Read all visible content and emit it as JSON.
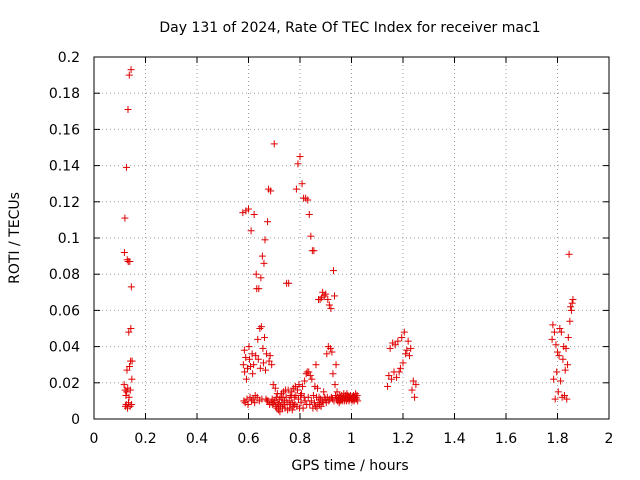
{
  "chart_data": {
    "type": "scatter",
    "title": "Day 131 of 2024, Rate Of TEC Index for receiver mac1",
    "xlabel": "GPS time / hours",
    "ylabel": "ROTI / TECUs",
    "xlim": [
      0,
      2
    ],
    "ylim": [
      0,
      0.2
    ],
    "grid": true,
    "marker": "+",
    "color": "#e00000",
    "xticks": [
      0,
      0.2,
      0.4,
      0.6,
      0.8,
      1,
      1.2,
      1.4,
      1.6,
      1.8,
      2
    ],
    "xtick_labels": [
      "0",
      "0.2",
      "0.4",
      "0.6",
      "0.8",
      "1",
      "1.2",
      "1.4",
      "1.6",
      "1.8",
      "2"
    ],
    "yticks": [
      0,
      0.02,
      0.04,
      0.06,
      0.08,
      0.1,
      0.12,
      0.14,
      0.16,
      0.18,
      0.2
    ],
    "ytick_labels": [
      "0",
      "0.02",
      "0.04",
      "0.06",
      "0.08",
      "0.1",
      "0.12",
      "0.14",
      "0.16",
      "0.18",
      "0.2"
    ],
    "series": [
      {
        "name": "ROTI",
        "points": [
          [
            0.117,
            0.019
          ],
          [
            0.118,
            0.092
          ],
          [
            0.12,
            0.111
          ],
          [
            0.121,
            0.016
          ],
          [
            0.122,
            0.007
          ],
          [
            0.124,
            0.013
          ],
          [
            0.125,
            0.008
          ],
          [
            0.126,
            0.139
          ],
          [
            0.127,
            0.015
          ],
          [
            0.128,
            0.027
          ],
          [
            0.129,
            0.088
          ],
          [
            0.13,
            0.006
          ],
          [
            0.131,
            0.017
          ],
          [
            0.132,
            0.171
          ],
          [
            0.133,
            0.087
          ],
          [
            0.134,
            0.009
          ],
          [
            0.135,
            0.048
          ],
          [
            0.136,
            0.012
          ],
          [
            0.137,
            0.19
          ],
          [
            0.138,
            0.029
          ],
          [
            0.139,
            0.087
          ],
          [
            0.14,
            0.007
          ],
          [
            0.141,
            0.016
          ],
          [
            0.142,
            0.032
          ],
          [
            0.143,
            0.05
          ],
          [
            0.144,
            0.193
          ],
          [
            0.145,
            0.073
          ],
          [
            0.146,
            0.008
          ],
          [
            0.147,
            0.022
          ],
          [
            0.148,
            0.032
          ],
          [
            0.578,
            0.114
          ],
          [
            0.58,
            0.03
          ],
          [
            0.582,
            0.01
          ],
          [
            0.584,
            0.038
          ],
          [
            0.585,
            0.026
          ],
          [
            0.587,
            0.009
          ],
          [
            0.589,
            0.034
          ],
          [
            0.59,
            0.115
          ],
          [
            0.592,
            0.022
          ],
          [
            0.594,
            0.011
          ],
          [
            0.596,
            0.028
          ],
          [
            0.598,
            0.008
          ],
          [
            0.6,
            0.116
          ],
          [
            0.602,
            0.04
          ],
          [
            0.604,
            0.033
          ],
          [
            0.606,
            0.012
          ],
          [
            0.608,
            0.029
          ],
          [
            0.61,
            0.104
          ],
          [
            0.612,
            0.01
          ],
          [
            0.614,
            0.036
          ],
          [
            0.616,
            0.025
          ],
          [
            0.618,
            0.011
          ],
          [
            0.62,
            0.03
          ],
          [
            0.622,
            0.113
          ],
          [
            0.624,
            0.009
          ],
          [
            0.626,
            0.013
          ],
          [
            0.628,
            0.035
          ],
          [
            0.63,
            0.08
          ],
          [
            0.632,
            0.072
          ],
          [
            0.634,
            0.012
          ],
          [
            0.636,
            0.044
          ],
          [
            0.638,
            0.033
          ],
          [
            0.64,
            0.072
          ],
          [
            0.642,
            0.01
          ],
          [
            0.644,
            0.05
          ],
          [
            0.646,
            0.028
          ],
          [
            0.648,
            0.078
          ],
          [
            0.65,
            0.051
          ],
          [
            0.652,
            0.011
          ],
          [
            0.654,
            0.09
          ],
          [
            0.656,
            0.039
          ],
          [
            0.658,
            0.031
          ],
          [
            0.66,
            0.086
          ],
          [
            0.662,
            0.045
          ],
          [
            0.664,
            0.099
          ],
          [
            0.666,
            0.027
          ],
          [
            0.668,
            0.011
          ],
          [
            0.67,
            0.036
          ],
          [
            0.672,
            0.01
          ],
          [
            0.674,
            0.109
          ],
          [
            0.676,
            0.01
          ],
          [
            0.678,
            0.127
          ],
          [
            0.68,
            0.032
          ],
          [
            0.682,
            0.008
          ],
          [
            0.684,
            0.035
          ],
          [
            0.686,
            0.126
          ],
          [
            0.688,
            0.009
          ],
          [
            0.69,
            0.03
          ],
          [
            0.692,
            0.011
          ],
          [
            0.694,
            0.008
          ],
          [
            0.696,
            0.019
          ],
          [
            0.698,
            0.009
          ],
          [
            0.7,
            0.152
          ],
          [
            0.702,
            0.01
          ],
          [
            0.704,
            0.017
          ],
          [
            0.706,
            0.007
          ],
          [
            0.708,
            0.012
          ],
          [
            0.71,
            0.006
          ],
          [
            0.712,
            0.014
          ],
          [
            0.714,
            0.009
          ],
          [
            0.716,
            0.005
          ],
          [
            0.718,
            0.008
          ],
          [
            0.72,
            0.011
          ],
          [
            0.722,
            0.004
          ],
          [
            0.724,
            0.007
          ],
          [
            0.726,
            0.012
          ],
          [
            0.728,
            0.014
          ],
          [
            0.73,
            0.009
          ],
          [
            0.732,
            0.006
          ],
          [
            0.734,
            0.012
          ],
          [
            0.736,
            0.015
          ],
          [
            0.738,
            0.008
          ],
          [
            0.74,
            0.01
          ],
          [
            0.742,
            0.006
          ],
          [
            0.744,
            0.016
          ],
          [
            0.746,
            0.012
          ],
          [
            0.748,
            0.075
          ],
          [
            0.75,
            0.009
          ],
          [
            0.752,
            0.005
          ],
          [
            0.754,
            0.016
          ],
          [
            0.756,
            0.075
          ],
          [
            0.758,
            0.01
          ],
          [
            0.76,
            0.006
          ],
          [
            0.762,
            0.013
          ],
          [
            0.764,
            0.008
          ],
          [
            0.766,
            0.012
          ],
          [
            0.768,
            0.015
          ],
          [
            0.77,
            0.005
          ],
          [
            0.772,
            0.009
          ],
          [
            0.774,
            0.017
          ],
          [
            0.776,
            0.007
          ],
          [
            0.778,
            0.012
          ],
          [
            0.78,
            0.008
          ],
          [
            0.782,
            0.018
          ],
          [
            0.784,
            0.013
          ],
          [
            0.786,
            0.127
          ],
          [
            0.788,
            0.007
          ],
          [
            0.79,
            0.016
          ],
          [
            0.792,
            0.141
          ],
          [
            0.794,
            0.011
          ],
          [
            0.796,
            0.019
          ],
          [
            0.798,
            0.006
          ],
          [
            0.8,
            0.145
          ],
          [
            0.802,
            0.013
          ],
          [
            0.804,
            0.009
          ],
          [
            0.806,
            0.014
          ],
          [
            0.808,
            0.13
          ],
          [
            0.81,
            0.018
          ],
          [
            0.812,
            0.006
          ],
          [
            0.814,
            0.122
          ],
          [
            0.816,
            0.012
          ],
          [
            0.818,
            0.021
          ],
          [
            0.82,
            0.01
          ],
          [
            0.822,
            0.122
          ],
          [
            0.824,
            0.025
          ],
          [
            0.826,
            0.008
          ],
          [
            0.828,
            0.026
          ],
          [
            0.83,
            0.121
          ],
          [
            0.832,
            0.012
          ],
          [
            0.834,
            0.026
          ],
          [
            0.836,
            0.113
          ],
          [
            0.838,
            0.008
          ],
          [
            0.84,
            0.024
          ],
          [
            0.842,
            0.101
          ],
          [
            0.844,
            0.01
          ],
          [
            0.846,
            0.022
          ],
          [
            0.848,
            0.093
          ],
          [
            0.85,
            0.006
          ],
          [
            0.852,
            0.013
          ],
          [
            0.854,
            0.093
          ],
          [
            0.856,
            0.009
          ],
          [
            0.858,
            0.018
          ],
          [
            0.86,
            0.007
          ],
          [
            0.862,
            0.03
          ],
          [
            0.864,
            0.012
          ],
          [
            0.866,
            0.006
          ],
          [
            0.868,
            0.017
          ],
          [
            0.87,
            0.009
          ],
          [
            0.872,
            0.066
          ],
          [
            0.874,
            0.012
          ],
          [
            0.876,
            0.008
          ],
          [
            0.878,
            0.066
          ],
          [
            0.88,
            0.011
          ],
          [
            0.882,
            0.007
          ],
          [
            0.884,
            0.067
          ],
          [
            0.886,
            0.01
          ],
          [
            0.888,
            0.07
          ],
          [
            0.89,
            0.009
          ],
          [
            0.892,
            0.015
          ],
          [
            0.894,
            0.068
          ],
          [
            0.896,
            0.012
          ],
          [
            0.898,
            0.011
          ],
          [
            0.9,
            0.069
          ],
          [
            0.902,
            0.009
          ],
          [
            0.904,
            0.036
          ],
          [
            0.906,
            0.012
          ],
          [
            0.908,
            0.066
          ],
          [
            0.91,
            0.04
          ],
          [
            0.912,
            0.01
          ],
          [
            0.914,
            0.063
          ],
          [
            0.916,
            0.011
          ],
          [
            0.918,
            0.039
          ],
          [
            0.92,
            0.061
          ],
          [
            0.922,
            0.012
          ],
          [
            0.924,
            0.037
          ],
          [
            0.926,
            0.011
          ],
          [
            0.928,
            0.025
          ],
          [
            0.93,
            0.082
          ],
          [
            0.932,
            0.01
          ],
          [
            0.934,
            0.068
          ],
          [
            0.936,
            0.019
          ],
          [
            0.938,
            0.013
          ],
          [
            0.94,
            0.03
          ],
          [
            0.942,
            0.011
          ],
          [
            0.944,
            0.015
          ],
          [
            0.946,
            0.01
          ],
          [
            0.948,
            0.012
          ],
          [
            0.95,
            0.011
          ],
          [
            0.952,
            0.009
          ],
          [
            0.954,
            0.013
          ],
          [
            0.956,
            0.01
          ],
          [
            0.958,
            0.012
          ],
          [
            0.96,
            0.011
          ],
          [
            0.962,
            0.013
          ],
          [
            0.964,
            0.01
          ],
          [
            0.966,
            0.011
          ],
          [
            0.968,
            0.012
          ],
          [
            0.97,
            0.014
          ],
          [
            0.972,
            0.01
          ],
          [
            0.974,
            0.011
          ],
          [
            0.976,
            0.013
          ],
          [
            0.978,
            0.012
          ],
          [
            0.98,
            0.01
          ],
          [
            0.982,
            0.014
          ],
          [
            0.984,
            0.011
          ],
          [
            0.986,
            0.013
          ],
          [
            0.988,
            0.012
          ],
          [
            0.99,
            0.01
          ],
          [
            0.992,
            0.012
          ],
          [
            0.994,
            0.011
          ],
          [
            0.996,
            0.013
          ],
          [
            0.998,
            0.012
          ],
          [
            1.0,
            0.011
          ],
          [
            1.002,
            0.01
          ],
          [
            1.004,
            0.012
          ],
          [
            1.006,
            0.011
          ],
          [
            1.008,
            0.013
          ],
          [
            1.01,
            0.01
          ],
          [
            1.012,
            0.012
          ],
          [
            1.014,
            0.011
          ],
          [
            1.016,
            0.014
          ],
          [
            1.018,
            0.012
          ],
          [
            1.02,
            0.011
          ],
          [
            1.022,
            0.013
          ],
          [
            1.024,
            0.01
          ],
          [
            1.14,
            0.018
          ],
          [
            1.145,
            0.024
          ],
          [
            1.15,
            0.039
          ],
          [
            1.155,
            0.022
          ],
          [
            1.16,
            0.042
          ],
          [
            1.165,
            0.026
          ],
          [
            1.17,
            0.041
          ],
          [
            1.175,
            0.023
          ],
          [
            1.18,
            0.043
          ],
          [
            1.185,
            0.026
          ],
          [
            1.19,
            0.028
          ],
          [
            1.195,
            0.045
          ],
          [
            1.2,
            0.031
          ],
          [
            1.205,
            0.048
          ],
          [
            1.21,
            0.036
          ],
          [
            1.215,
            0.038
          ],
          [
            1.22,
            0.043
          ],
          [
            1.225,
            0.035
          ],
          [
            1.23,
            0.039
          ],
          [
            1.235,
            0.016
          ],
          [
            1.24,
            0.021
          ],
          [
            1.245,
            0.012
          ],
          [
            1.25,
            0.019
          ],
          [
            1.779,
            0.044
          ],
          [
            1.782,
            0.052
          ],
          [
            1.785,
            0.022
          ],
          [
            1.788,
            0.048
          ],
          [
            1.791,
            0.011
          ],
          [
            1.794,
            0.041
          ],
          [
            1.797,
            0.026
          ],
          [
            1.8,
            0.037
          ],
          [
            1.803,
            0.015
          ],
          [
            1.806,
            0.035
          ],
          [
            1.809,
            0.05
          ],
          [
            1.812,
            0.021
          ],
          [
            1.815,
            0.048
          ],
          [
            1.818,
            0.012
          ],
          [
            1.821,
            0.033
          ],
          [
            1.824,
            0.04
          ],
          [
            1.827,
            0.013
          ],
          [
            1.83,
            0.027
          ],
          [
            1.833,
            0.039
          ],
          [
            1.836,
            0.011
          ],
          [
            1.839,
            0.03
          ],
          [
            1.842,
            0.045
          ],
          [
            1.845,
            0.091
          ],
          [
            1.848,
            0.054
          ],
          [
            1.851,
            0.062
          ],
          [
            1.854,
            0.06
          ],
          [
            1.857,
            0.064
          ],
          [
            1.86,
            0.066
          ]
        ]
      }
    ]
  }
}
